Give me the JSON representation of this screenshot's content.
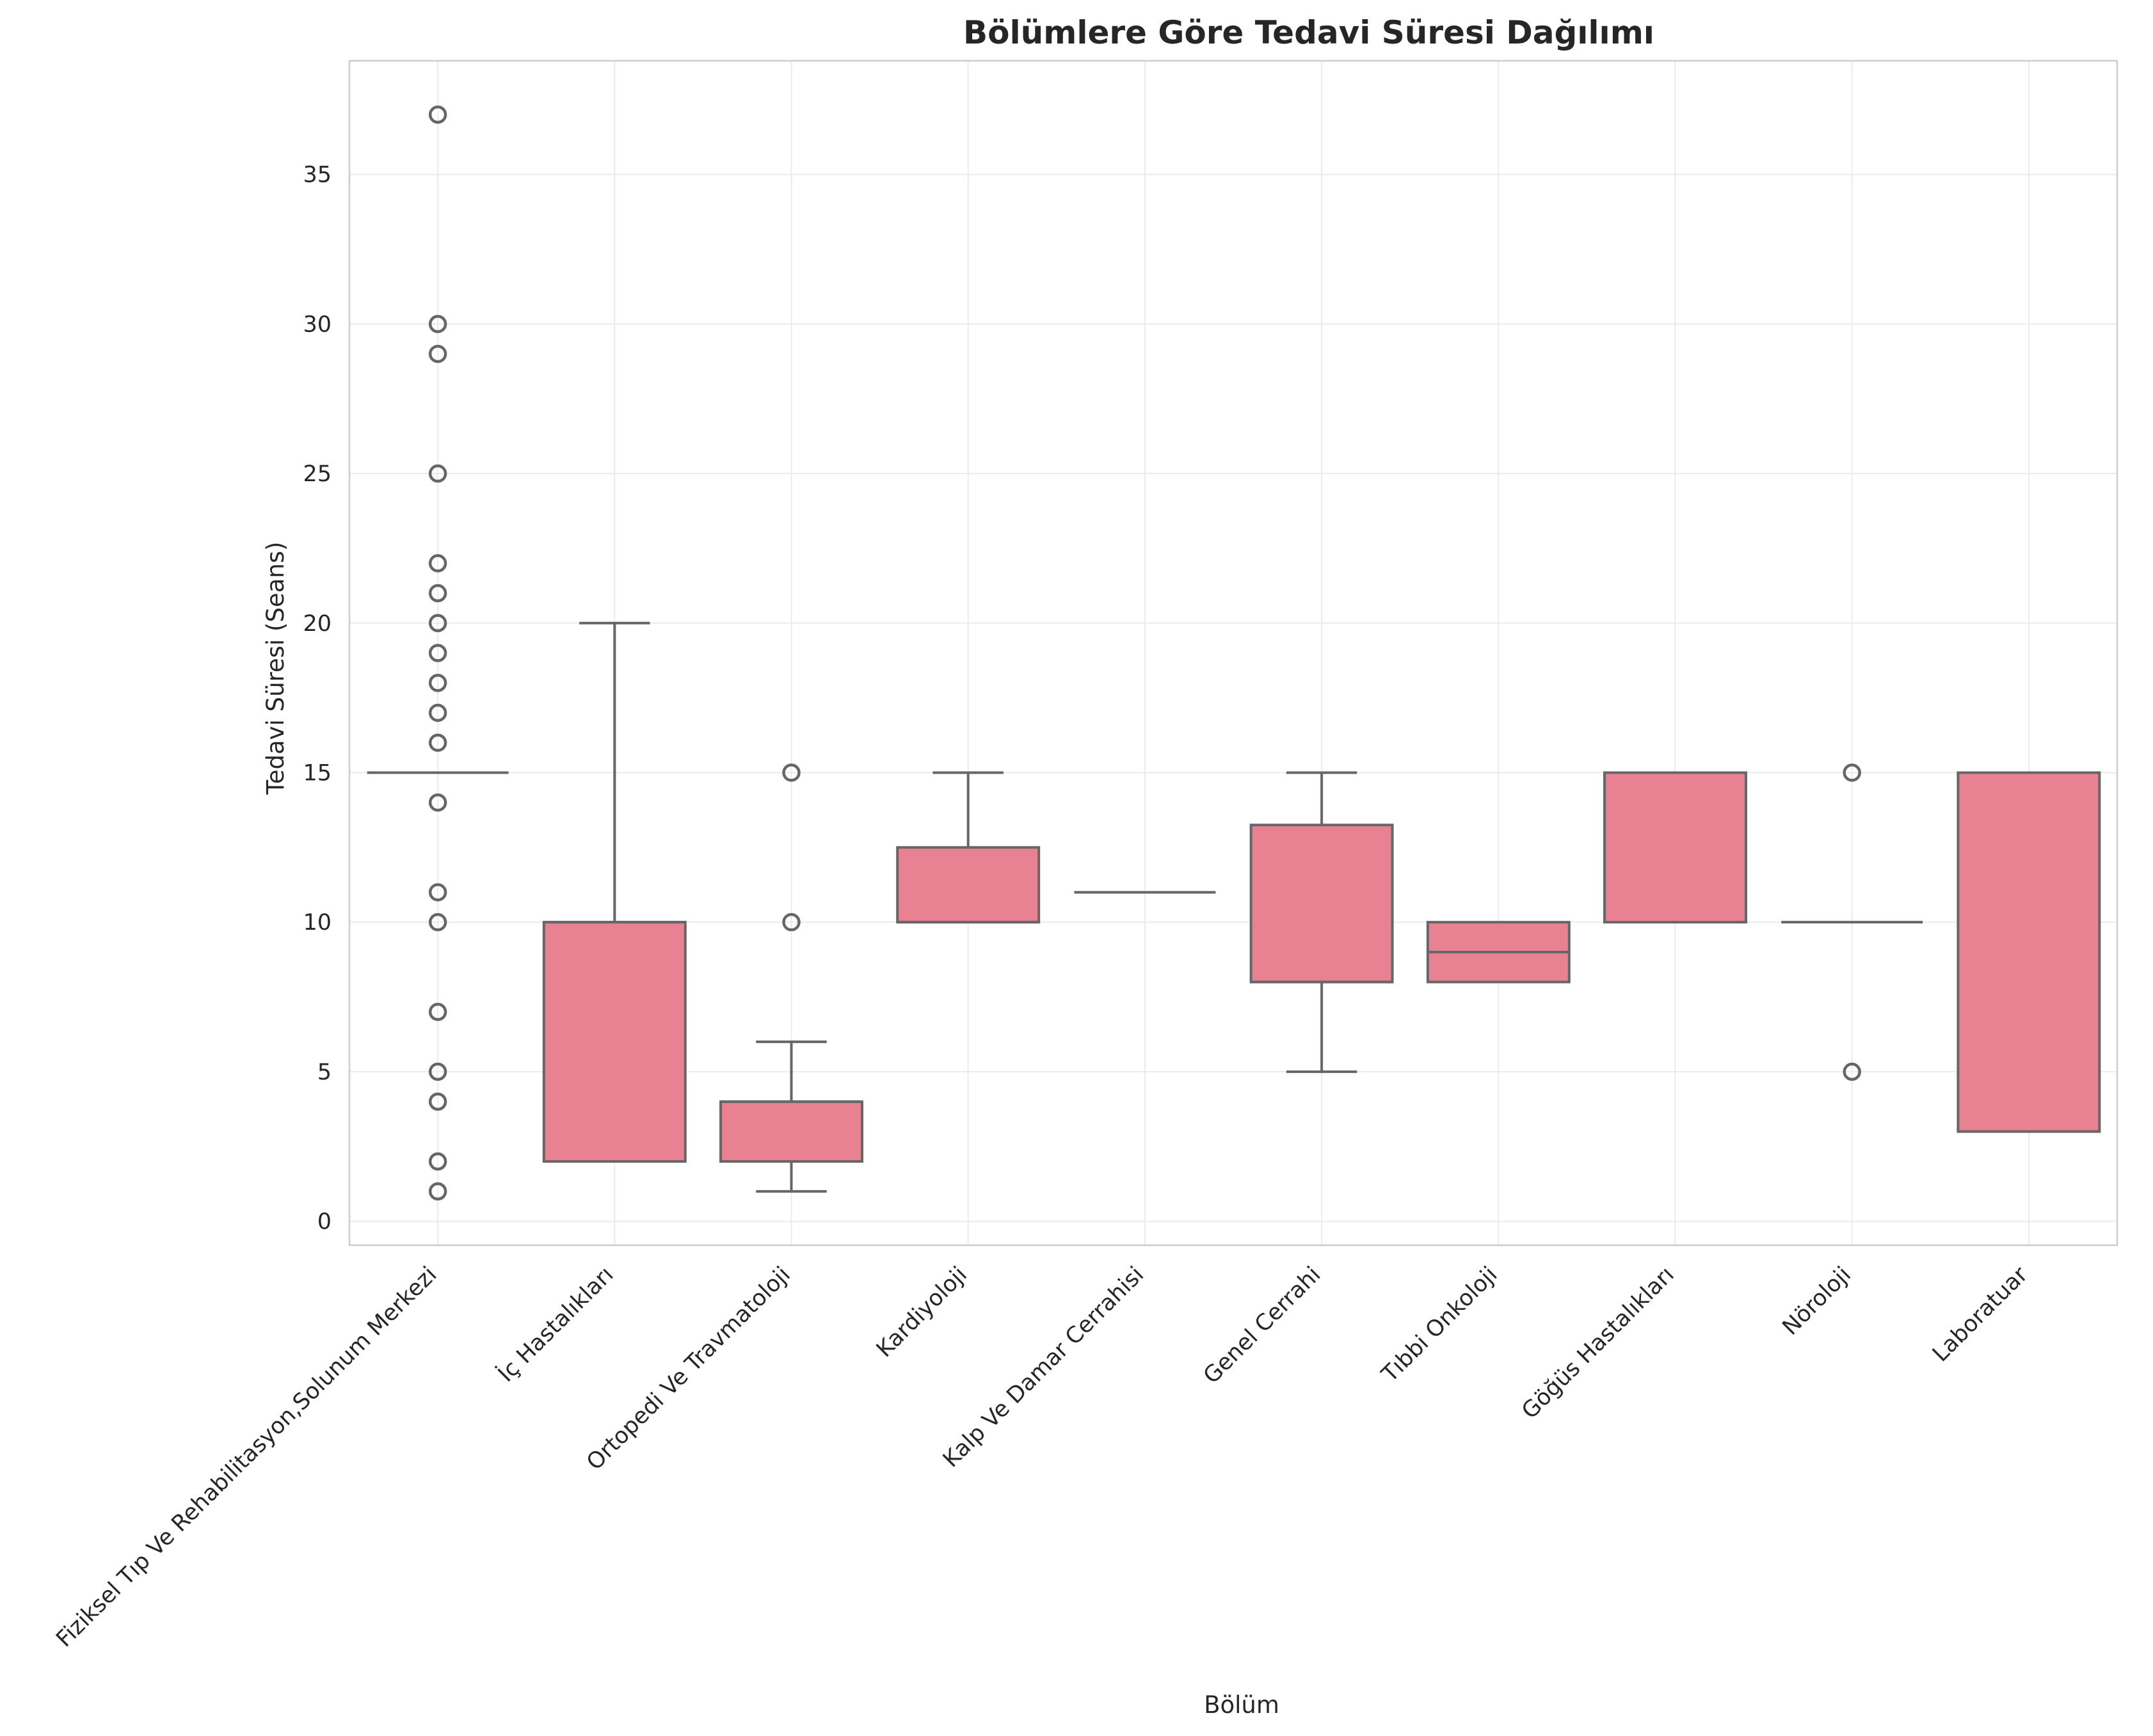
{
  "chart_data": {
    "type": "box",
    "title": "Bölümlere Göre Tedavi Süresi Dağılımı",
    "xlabel": "Bölüm",
    "ylabel": "Tedavi Süresi (Seans)",
    "ylim": [
      -0.8,
      38.8
    ],
    "yticks": [
      0,
      5,
      10,
      15,
      20,
      25,
      30,
      35
    ],
    "grid": true,
    "box_color": "#e88192",
    "line_color": "#666666",
    "grid_color": "#ebebeb",
    "spine_color": "#cccccc",
    "categories": [
      "Fiziksel Tıp Ve Rehabilitasyon,Solunum Merkezi",
      "İç Hastalıkları",
      "Ortopedi Ve Travmatoloji",
      "Kardiyoloji",
      "Kalp Ve Damar Cerrahisi",
      "Genel Cerrahi",
      "Tıbbi Onkoloji",
      "Göğüs Hastalıkları",
      "Nöroloji",
      "Laboratuar"
    ],
    "boxes": [
      {
        "q1": 15,
        "median": 15,
        "q3": 15,
        "whisker_low": 15,
        "whisker_high": 15,
        "outliers": [
          37,
          30,
          29,
          25,
          22,
          21,
          20,
          19,
          18,
          17,
          16,
          14,
          11,
          10,
          7,
          5,
          4,
          2,
          1
        ]
      },
      {
        "q1": 2,
        "median": 10,
        "q3": 10,
        "whisker_low": 2,
        "whisker_high": 20,
        "outliers": []
      },
      {
        "q1": 2,
        "median": 4,
        "q3": 4,
        "whisker_low": 1,
        "whisker_high": 6,
        "outliers": [
          15,
          10
        ]
      },
      {
        "q1": 10,
        "median": 10,
        "q3": 12.5,
        "whisker_low": 10,
        "whisker_high": 15,
        "outliers": []
      },
      {
        "q1": 11,
        "median": 11,
        "q3": 11,
        "whisker_low": 11,
        "whisker_high": 11,
        "outliers": []
      },
      {
        "q1": 8,
        "median": 8,
        "q3": 13.25,
        "whisker_low": 5,
        "whisker_high": 15,
        "outliers": []
      },
      {
        "q1": 8,
        "median": 9,
        "q3": 10,
        "whisker_low": 8,
        "whisker_high": 10,
        "outliers": []
      },
      {
        "q1": 10,
        "median": 15,
        "q3": 15,
        "whisker_low": 10,
        "whisker_high": 15,
        "outliers": []
      },
      {
        "q1": 10,
        "median": 10,
        "q3": 10,
        "whisker_low": 10,
        "whisker_high": 10,
        "outliers": [
          15,
          5
        ]
      },
      {
        "q1": 3,
        "median": 15,
        "q3": 15,
        "whisker_low": 3,
        "whisker_high": 15,
        "outliers": []
      }
    ]
  }
}
